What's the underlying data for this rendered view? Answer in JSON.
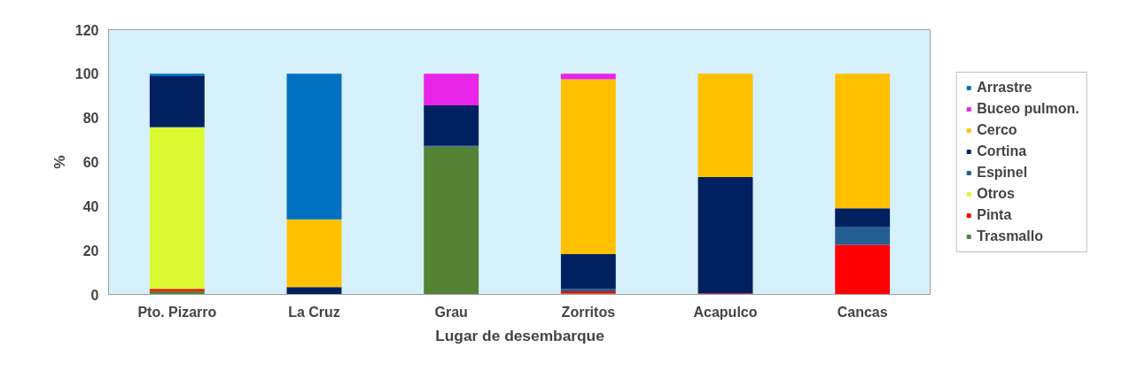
{
  "chart_data": {
    "type": "bar",
    "stacked": true,
    "xlabel": "Lugar de desembarque",
    "ylabel": "%",
    "categories": [
      "Pto. Pizarro",
      "La Cruz",
      "Grau",
      "Zorritos",
      "Acapulco",
      "Cancas"
    ],
    "series": [
      {
        "name": "Trasmallo",
        "color": "#548235",
        "values": [
          1.5,
          0,
          66.9,
          0.5,
          0,
          0
        ]
      },
      {
        "name": "Pinta",
        "color": "#ff0000",
        "values": [
          1.0,
          0,
          0,
          0.9,
          0.5,
          22.5
        ]
      },
      {
        "name": "Otros",
        "color": "#dcfa32",
        "values": [
          73.2,
          0,
          0,
          0,
          0,
          0
        ]
      },
      {
        "name": "Espinel",
        "color": "#255e91",
        "values": [
          0.3,
          0,
          0.4,
          1.1,
          0,
          8.2
        ]
      },
      {
        "name": "Cortina",
        "color": "#002060",
        "values": [
          22.9,
          3.3,
          18.4,
          15.8,
          52.7,
          8.3
        ]
      },
      {
        "name": "Cerco",
        "color": "#ffc000",
        "values": [
          0,
          30.7,
          0,
          79.2,
          46.8,
          61.0
        ]
      },
      {
        "name": "Buceo pulmon.",
        "color": "#e824e8",
        "values": [
          0,
          0,
          14.3,
          2.5,
          0,
          0
        ]
      },
      {
        "name": "Arrastre",
        "color": "#0070c0",
        "values": [
          1.1,
          66.0,
          0,
          0,
          0,
          0
        ]
      }
    ],
    "ylim": [
      0,
      120
    ],
    "yticks": [
      0,
      20,
      40,
      60,
      80,
      100,
      120
    ],
    "grid": false,
    "legend": "right"
  }
}
